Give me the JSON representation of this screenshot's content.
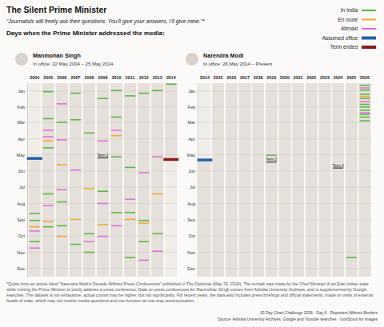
{
  "title": "The Silent Prime Minister",
  "subtitle": "“Journalists will freely ask their questions. You’ll give your answers, I’ll give mine.”*",
  "heading": "Days when the Prime Minister addressed the media:",
  "note": "*Quote from an article titled “Narendra Modi’s Decade Without Press Conferences” published in The Diplomat (May 29, 2024). The remark was made by the Chief Minister of an East Indian state while inviting the Prime Minister to jointly address a press conference. Data on press conferences for Manmohan Singh comes from Ashoka University Archives, and is supplemented by Google searches. The dataset is not exhaustive, actual counts may be higher, but not significantly. For recent years, the data also includes press briefings and official statements, made on visits of external heads of state, which may not involve media questions and can function as one-way communication.",
  "credits": [
    "30 Day Chart Challenge 2026 · Day 6 · Reporters Without Borders",
    "Source: Ashoka University Archives, Google and Youtube searches · IconScout for images"
  ],
  "chart_data": [
    {
      "type": "strip",
      "title": "Manmohan Singh",
      "subtitle": "In office: 22 May 2004 – 25 May 2014",
      "legend": "top-right",
      "grid": true,
      "categories": [
        2004,
        2005,
        2006,
        2007,
        2008,
        2009,
        2010,
        2011,
        2012,
        2013,
        2014
      ],
      "ylim": [
        1,
        366
      ],
      "yticks": [
        {
          "value": 16,
          "label": "Jan"
        },
        {
          "value": 46,
          "label": "Feb"
        },
        {
          "value": 75,
          "label": "Mar"
        },
        {
          "value": 106,
          "label": "Apr"
        },
        {
          "value": 136,
          "label": "May"
        },
        {
          "value": 167,
          "label": "Jun"
        },
        {
          "value": 197,
          "label": "Jul"
        },
        {
          "value": 228,
          "label": "Aug"
        },
        {
          "value": 259,
          "label": "Sep"
        },
        {
          "value": 289,
          "label": "Oct"
        },
        {
          "value": 320,
          "label": "Nov"
        },
        {
          "value": 350,
          "label": "Dec"
        }
      ],
      "series": [
        {
          "name": "In India",
          "color": "#58b947",
          "type": "mark",
          "x": [
            2004,
            2004,
            2004,
            2005,
            2005,
            2005,
            2005,
            2005,
            2006,
            2006,
            2006,
            2007,
            2007,
            2007,
            2008,
            2008,
            2008,
            2009,
            2009,
            2010,
            2010,
            2010,
            2010,
            2011,
            2011,
            2011,
            2011,
            2012,
            2012,
            2012,
            2013,
            2013,
            2014
          ],
          "values": [
            247,
            260,
            300,
            17,
            68,
            123,
            210,
            272,
            75,
            225,
            270,
            20,
            70,
            305,
            95,
            285,
            320,
            30,
            205,
            15,
            65,
            140,
            245,
            25,
            160,
            245,
            330,
            20,
            260,
            300,
            15,
            285,
            3
          ]
        },
        {
          "name": "En route",
          "color": "#f2a93b",
          "type": "mark",
          "x": [
            2004,
            2005,
            2005,
            2006,
            2006,
            2007,
            2008,
            2009,
            2010,
            2011,
            2012,
            2013
          ],
          "values": [
            272,
            110,
            262,
            155,
            290,
            258,
            200,
            268,
            100,
            258,
            265,
            210
          ]
        },
        {
          "name": "Abroad",
          "color": "#e36fe0",
          "type": "mark",
          "x": [
            2004,
            2004,
            2005,
            2005,
            2005,
            2006,
            2006,
            2006,
            2007,
            2008,
            2009,
            2009,
            2009,
            2010,
            2010,
            2011,
            2012,
            2012,
            2013,
            2013
          ],
          "values": [
            280,
            312,
            90,
            102,
            232,
            40,
            108,
            202,
            165,
            300,
            110,
            228,
            290,
            90,
            270,
            220,
            170,
            335,
            140,
            318
          ]
        },
        {
          "name": "Assumed office",
          "color": "#2860a8",
          "type": "start",
          "x": [
            2004
          ],
          "values": [
            143
          ]
        },
        {
          "name": "Term ended",
          "color": "#8e1b1b",
          "type": "end",
          "x": [
            2014
          ],
          "values": [
            145
          ]
        }
      ],
      "annotations": [
        {
          "text": "Term 2",
          "x": 2009,
          "value": 142
        }
      ]
    },
    {
      "type": "strip",
      "title": "Narendra Modi",
      "subtitle": "In office: 26 May 2014 – Present",
      "legend": "top-right",
      "grid": true,
      "categories": [
        2014,
        2015,
        2016,
        2017,
        2018,
        2019,
        2020,
        2021,
        2022,
        2023,
        2024,
        2025,
        2026
      ],
      "ylim": [
        1,
        366
      ],
      "yticks": [
        {
          "value": 16,
          "label": "Jan"
        },
        {
          "value": 46,
          "label": "Feb"
        },
        {
          "value": 75,
          "label": "Mar"
        },
        {
          "value": 106,
          "label": "Apr"
        },
        {
          "value": 136,
          "label": "May"
        },
        {
          "value": 167,
          "label": "Jun"
        },
        {
          "value": 197,
          "label": "Jul"
        },
        {
          "value": 228,
          "label": "Aug"
        },
        {
          "value": 259,
          "label": "Sep"
        },
        {
          "value": 289,
          "label": "Oct"
        },
        {
          "value": 320,
          "label": "Nov"
        },
        {
          "value": 350,
          "label": "Dec"
        }
      ],
      "series": [
        {
          "name": "In India",
          "color": "#58b947",
          "type": "mark",
          "x": [
            2019,
            2025,
            2026,
            2026,
            2026,
            2026,
            2026,
            2026,
            2026,
            2026,
            2026,
            2026
          ],
          "values": [
            137,
            330,
            5,
            14,
            22,
            30,
            41,
            46,
            52,
            60,
            65,
            72
          ]
        },
        {
          "name": "En route",
          "color": "#f2a93b",
          "type": "mark",
          "x": [
            2026
          ],
          "values": [
            26
          ]
        },
        {
          "name": "Abroad",
          "color": "#e36fe0",
          "type": "mark",
          "x": [
            2026,
            2026,
            2026
          ],
          "values": [
            10,
            36,
            57
          ]
        },
        {
          "name": "Assumed office",
          "color": "#2860a8",
          "type": "start",
          "x": [
            2014
          ],
          "values": [
            146
          ]
        }
      ],
      "annotations": [
        {
          "text": "Term 2",
          "x": 2019,
          "value": 150
        },
        {
          "text": "Term 3",
          "x": 2024,
          "value": 161
        }
      ]
    }
  ]
}
